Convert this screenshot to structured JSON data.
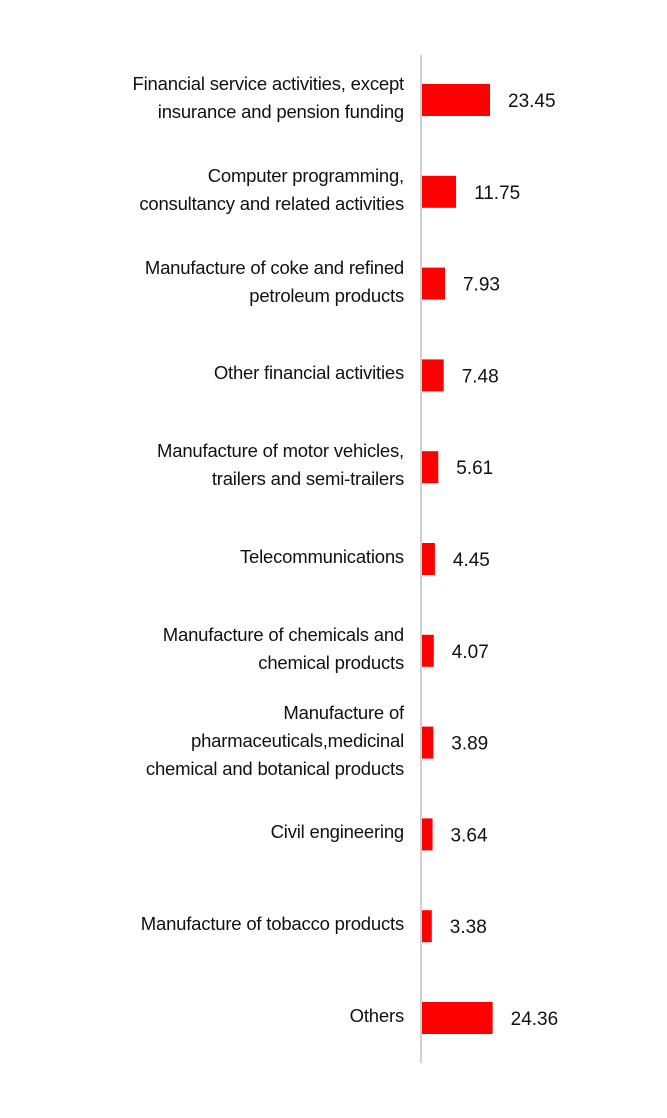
{
  "chart_data": {
    "type": "bar",
    "orientation": "horizontal",
    "color": "#ff0000",
    "categories": [
      "Financial service activities, except\ninsurance and pension funding",
      "Computer programming,\nconsultancy and related activities",
      "Manufacture of coke and refined\npetroleum products",
      "Other financial activities",
      "Manufacture of motor vehicles,\ntrailers and semi-trailers",
      "Telecommunications",
      "Manufacture of chemicals and\nchemical products",
      "Manufacture of\npharmaceuticals,medicinal\nchemical and botanical products",
      "Civil engineering",
      "Manufacture of tobacco products",
      "Others"
    ],
    "values": [
      23.45,
      11.75,
      7.93,
      7.48,
      5.61,
      4.45,
      4.07,
      3.89,
      3.64,
      3.38,
      24.36
    ]
  }
}
